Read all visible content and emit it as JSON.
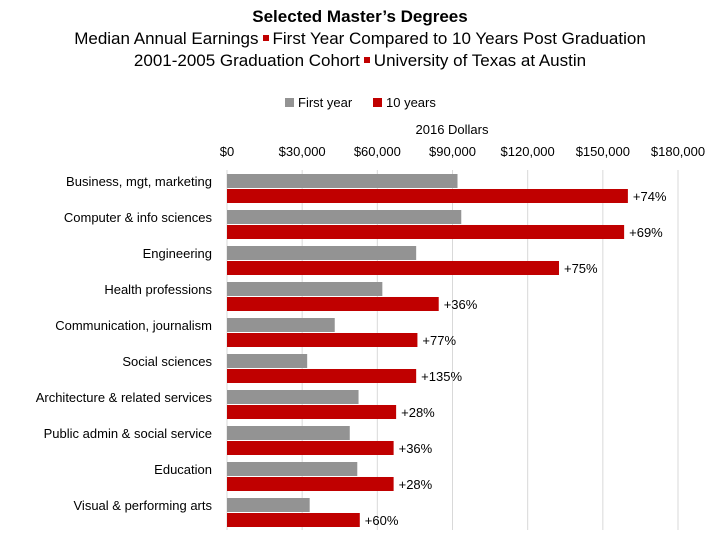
{
  "title": {
    "line1": "Selected Master’s Degrees",
    "line2a": "Median Annual Earnings",
    "line2b": "First Year Compared to 10 Years Post Graduation",
    "line3a": "2001-2005 Graduation Cohort",
    "line3b": "University of Texas at Austin"
  },
  "chart_data": {
    "type": "bar",
    "orientation": "horizontal",
    "xlabel": "2016 Dollars",
    "xlim": [
      0,
      180000
    ],
    "xticks": [
      "$0",
      "$30,000",
      "$60,000",
      "$90,000",
      "$120,000",
      "$150,000",
      "$180,000"
    ],
    "grid": true,
    "legend_position": "top",
    "categories": [
      "Business, mgt, marketing",
      "Computer & info sciences",
      "Engineering",
      "Health professions",
      "Communication, journalism",
      "Social sciences",
      "Architecture & related services",
      "Public admin & social service",
      "Education",
      "Visual & performing arts"
    ],
    "series": [
      {
        "name": "First year",
        "color": "#939393",
        "values": [
          92000,
          93500,
          75500,
          62000,
          43000,
          32000,
          52500,
          49000,
          52000,
          33000
        ]
      },
      {
        "name": "10 years",
        "color": "#c00000",
        "values": [
          160000,
          158500,
          132500,
          84500,
          76000,
          75500,
          67500,
          66500,
          66500,
          53000
        ]
      }
    ],
    "data_labels": [
      "+74%",
      "+69%",
      "+75%",
      "+36%",
      "+77%",
      "+135%",
      "+28%",
      "+36%",
      "+28%",
      "+60%"
    ]
  }
}
